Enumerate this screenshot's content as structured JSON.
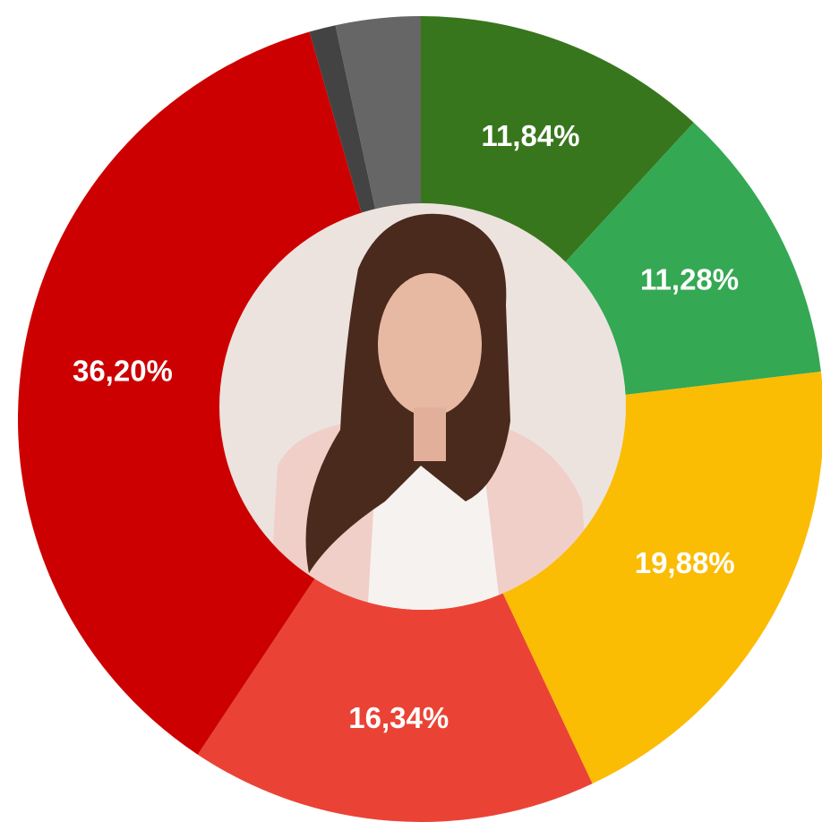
{
  "chart_data": {
    "type": "pie",
    "values": [
      11.84,
      11.28,
      19.88,
      16.34,
      36.2,
      1.06,
      3.4
    ],
    "value_labels": [
      "11,84%",
      "11,28%",
      "19,88%",
      "16,34%",
      "36,20%",
      null,
      null
    ],
    "colors": [
      "#38761d",
      "#34a853",
      "#fbbc04",
      "#ea4335",
      "#cc0000",
      "#434343",
      "#666666"
    ],
    "start_angle": 0,
    "direction": "clockwise"
  }
}
